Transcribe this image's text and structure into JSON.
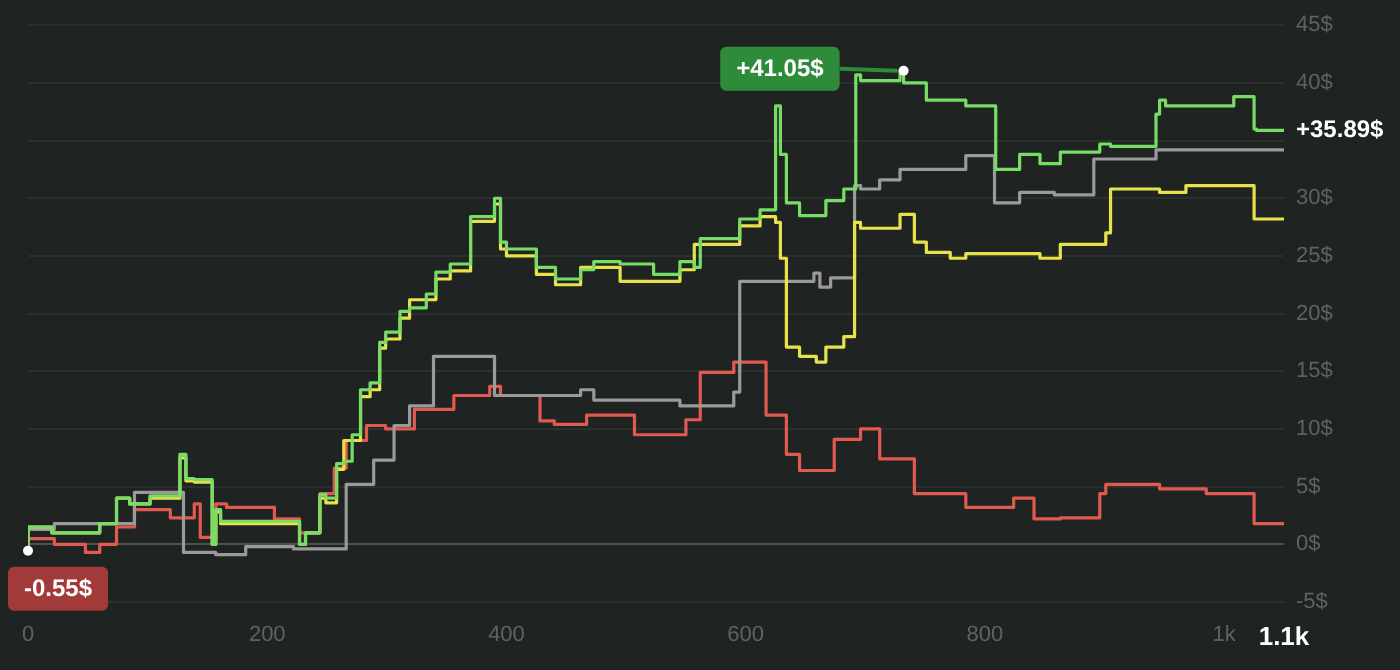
{
  "chart_data": {
    "type": "step",
    "xlim": [
      0,
      1050
    ],
    "ylim": [
      -5,
      45
    ],
    "xticks": [
      0,
      200,
      400,
      600,
      800,
      {
        "value": 1000,
        "label": "1k"
      },
      {
        "value": 1050,
        "label": "1.1k"
      }
    ],
    "yticks": [
      {
        "value": -5,
        "label": "-5$"
      },
      {
        "value": 0,
        "label": "0$"
      },
      {
        "value": 5,
        "label": "5$"
      },
      {
        "value": 10,
        "label": "10$"
      },
      {
        "value": 15,
        "label": "15$"
      },
      {
        "value": 20,
        "label": "20$"
      },
      {
        "value": 25,
        "label": "25$"
      },
      {
        "value": 30,
        "label": "30$"
      },
      {
        "value": 35,
        "label": null
      },
      {
        "value": 40,
        "label": "40$"
      },
      {
        "value": 45,
        "label": "45$"
      }
    ],
    "grid": "y",
    "marker": "none",
    "line_style": "solid",
    "series": [
      {
        "color": "#77dd66",
        "x": [
          0,
          20,
          60,
          74,
          85,
          102,
          127,
          132,
          139,
          154,
          157,
          161,
          227,
          232,
          244,
          249,
          258,
          264,
          271,
          278,
          286,
          294,
          299,
          311,
          319,
          333,
          341,
          353,
          370,
          390,
          395,
          400,
          425,
          441,
          462,
          473,
          495,
          523,
          545,
          557,
          562,
          595,
          612,
          625,
          629,
          634,
          645,
          667,
          682,
          692,
          696,
          729,
          732,
          751,
          784,
          809,
          829,
          846,
          863,
          896,
          905,
          943,
          946,
          951,
          1008,
          1025,
          1027,
          1050
        ],
        "values": [
          -0.55,
          1.5,
          1,
          1.8,
          4,
          3.5,
          4.2,
          7.8,
          5.7,
          5.6,
          0,
          3,
          2,
          0,
          1,
          4.3,
          4,
          7,
          7.2,
          9.5,
          13.4,
          14,
          17.5,
          18.4,
          20.2,
          20.5,
          21.7,
          23.6,
          24.3,
          28.4,
          30,
          26.2,
          25.6,
          24,
          23,
          23.8,
          24.5,
          24.3,
          23.4,
          24.5,
          24,
          26.5,
          28.2,
          29,
          38,
          33.8,
          29.6,
          28.5,
          29.8,
          30.8,
          40.7,
          40.2,
          41.05,
          40,
          38.5,
          38,
          32.5,
          33.8,
          33,
          34,
          34.7,
          34.5,
          37.3,
          38.5,
          38,
          38.8,
          36,
          35.89
        ]
      },
      {
        "color": "#e8e24a",
        "x": [
          0,
          20,
          60,
          74,
          85,
          102,
          127,
          132,
          139,
          154,
          157,
          161,
          227,
          232,
          244,
          249,
          258,
          264,
          278,
          286,
          294,
          299,
          311,
          319,
          341,
          353,
          370,
          390,
          395,
          400,
          425,
          441,
          462,
          495,
          545,
          557,
          595,
          612,
          625,
          629,
          634,
          645,
          659,
          667,
          682,
          691,
          696,
          729,
          741,
          751,
          771,
          784,
          846,
          863,
          901,
          905,
          946,
          968,
          1025,
          1027,
          1050
        ],
        "values": [
          -0.55,
          1.5,
          1,
          1.8,
          4,
          3.5,
          4,
          7.5,
          5.5,
          5.4,
          0,
          2.8,
          1.8,
          0,
          1,
          4,
          3.6,
          6.5,
          9,
          12.8,
          13.4,
          17,
          17.8,
          19.6,
          21.2,
          23,
          23.7,
          28,
          29.5,
          25.6,
          25,
          23.4,
          22.5,
          24,
          22.8,
          23.8,
          26,
          27.6,
          28.4,
          27.9,
          24.8,
          17.1,
          16.3,
          15.8,
          17.1,
          18,
          27.9,
          27.4,
          28.6,
          26.2,
          25.3,
          24.8,
          25.2,
          24.8,
          26,
          27,
          30.8,
          30.5,
          31.1,
          28.2,
          28.2
        ]
      },
      {
        "color": "#9a9a9a",
        "x": [
          0,
          22,
          89,
          130,
          157,
          182,
          222,
          266,
          289,
          306,
          319,
          339,
          390,
          400,
          462,
          473,
          545,
          590,
          595,
          629,
          657,
          662,
          671,
          691,
          696,
          712,
          729,
          784,
          808,
          829,
          858,
          891,
          943,
          968,
          1050
        ],
        "values": [
          0,
          1.3,
          1.8,
          4.5,
          -0.7,
          -0.9,
          -0.2,
          -0.4,
          5.2,
          7.3,
          10.3,
          12,
          16.3,
          12.9,
          12.9,
          13.4,
          12.5,
          12,
          13.2,
          22.8,
          22.8,
          23.5,
          22.3,
          23.1,
          31.1,
          30.8,
          31.6,
          32.5,
          33.7,
          29.6,
          30.5,
          30.3,
          33.4,
          34.2,
          34.2
        ]
      },
      {
        "color": "#e05a50",
        "x": [
          0,
          22,
          48,
          60,
          74,
          89,
          119,
          139,
          144,
          157,
          166,
          206,
          227,
          244,
          256,
          266,
          283,
          299,
          323,
          356,
          386,
          395,
          428,
          440,
          467,
          507,
          550,
          562,
          590,
          617,
          634,
          645,
          674,
          696,
          712,
          741,
          784,
          824,
          841,
          863,
          896,
          901,
          946,
          985,
          1025,
          1027,
          1050
        ],
        "values": [
          0,
          0.5,
          0,
          -0.7,
          0,
          1.5,
          3,
          2.3,
          3.5,
          0.6,
          3.5,
          3.2,
          2.2,
          1,
          4.4,
          6.6,
          9,
          10.3,
          10,
          11.7,
          12.9,
          13.7,
          12.9,
          10.7,
          10.4,
          11.2,
          9.5,
          10.8,
          14.9,
          15.8,
          11.2,
          7.8,
          6.4,
          9.1,
          10,
          7.4,
          4.4,
          3.2,
          4,
          2.2,
          2.3,
          4.4,
          5.2,
          4.8,
          4.4,
          1.8,
          1.8
        ]
      }
    ],
    "annotations": [
      {
        "text": "-0.55$",
        "x": 0,
        "y": -0.55
      },
      {
        "text": "+41.05$",
        "x": 732,
        "y": 41.05
      },
      {
        "text": "+35.89$",
        "x": 1050,
        "y": 35.89
      }
    ]
  }
}
